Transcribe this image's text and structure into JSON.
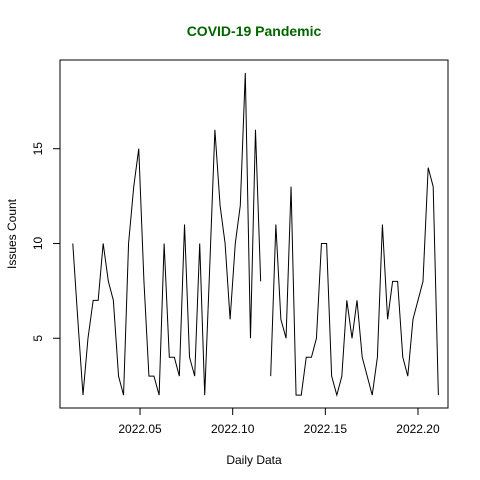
{
  "chart_data": {
    "type": "line",
    "title": "COVID-19 Pandemic",
    "title_color": "#006400",
    "x_label": "Daily Data",
    "y_label": "Issues Count",
    "x": [
      2022.0137,
      2022.0164,
      2022.0192,
      2022.0219,
      2022.0247,
      2022.0274,
      2022.0301,
      2022.0329,
      2022.0356,
      2022.0384,
      2022.0411,
      2022.0438,
      2022.0466,
      2022.0493,
      2022.0521,
      2022.0548,
      2022.0575,
      2022.0603,
      2022.063,
      2022.0658,
      2022.0685,
      2022.0712,
      2022.074,
      2022.0767,
      2022.0795,
      2022.0822,
      2022.0849,
      2022.0877,
      2022.0904,
      2022.0932,
      2022.0959,
      2022.0986,
      2022.1014,
      2022.1041,
      2022.1068,
      2022.1096,
      2022.1123,
      2022.1151,
      2022.1178,
      2022.1205,
      2022.1233,
      2022.126,
      2022.1288,
      2022.1315,
      2022.1342,
      2022.137,
      2022.1397,
      2022.1425,
      2022.1452,
      2022.1479,
      2022.1507,
      2022.1534,
      2022.1562,
      2022.1589,
      2022.1616,
      2022.1644,
      2022.1671,
      2022.1699,
      2022.1726,
      2022.1753,
      2022.1781,
      2022.1808,
      2022.1836,
      2022.1863,
      2022.189,
      2022.1918,
      2022.1945,
      2022.1973,
      2022.2,
      2022.2027,
      2022.2055,
      2022.2082,
      2022.211
    ],
    "values": [
      10,
      6,
      2,
      5,
      7,
      7,
      10,
      8,
      7,
      3,
      2,
      10,
      13,
      15,
      8,
      3,
      3,
      2,
      10,
      4,
      4,
      3,
      11,
      4,
      3,
      10,
      2,
      9,
      16,
      12,
      10,
      6,
      10,
      12,
      19,
      5,
      16,
      8,
      null,
      3,
      11,
      6,
      5,
      13,
      2,
      2,
      4,
      4,
      5,
      10,
      10,
      3,
      2,
      3,
      7,
      5,
      7,
      4,
      3,
      2,
      4,
      11,
      6,
      8,
      8,
      4,
      3,
      6,
      7,
      8,
      14,
      13,
      2
    ],
    "color": "#000000",
    "xlim": [
      2022.0068,
      2022.2162
    ],
    "ylim": [
      1.32,
      19.68
    ],
    "xticks": [
      {
        "value": 2022.05,
        "label": "2022.05"
      },
      {
        "value": 2022.1,
        "label": "2022.10"
      },
      {
        "value": 2022.15,
        "label": "2022.15"
      },
      {
        "value": 2022.2,
        "label": "2022.20"
      }
    ],
    "yticks": [
      5,
      10,
      15
    ]
  }
}
